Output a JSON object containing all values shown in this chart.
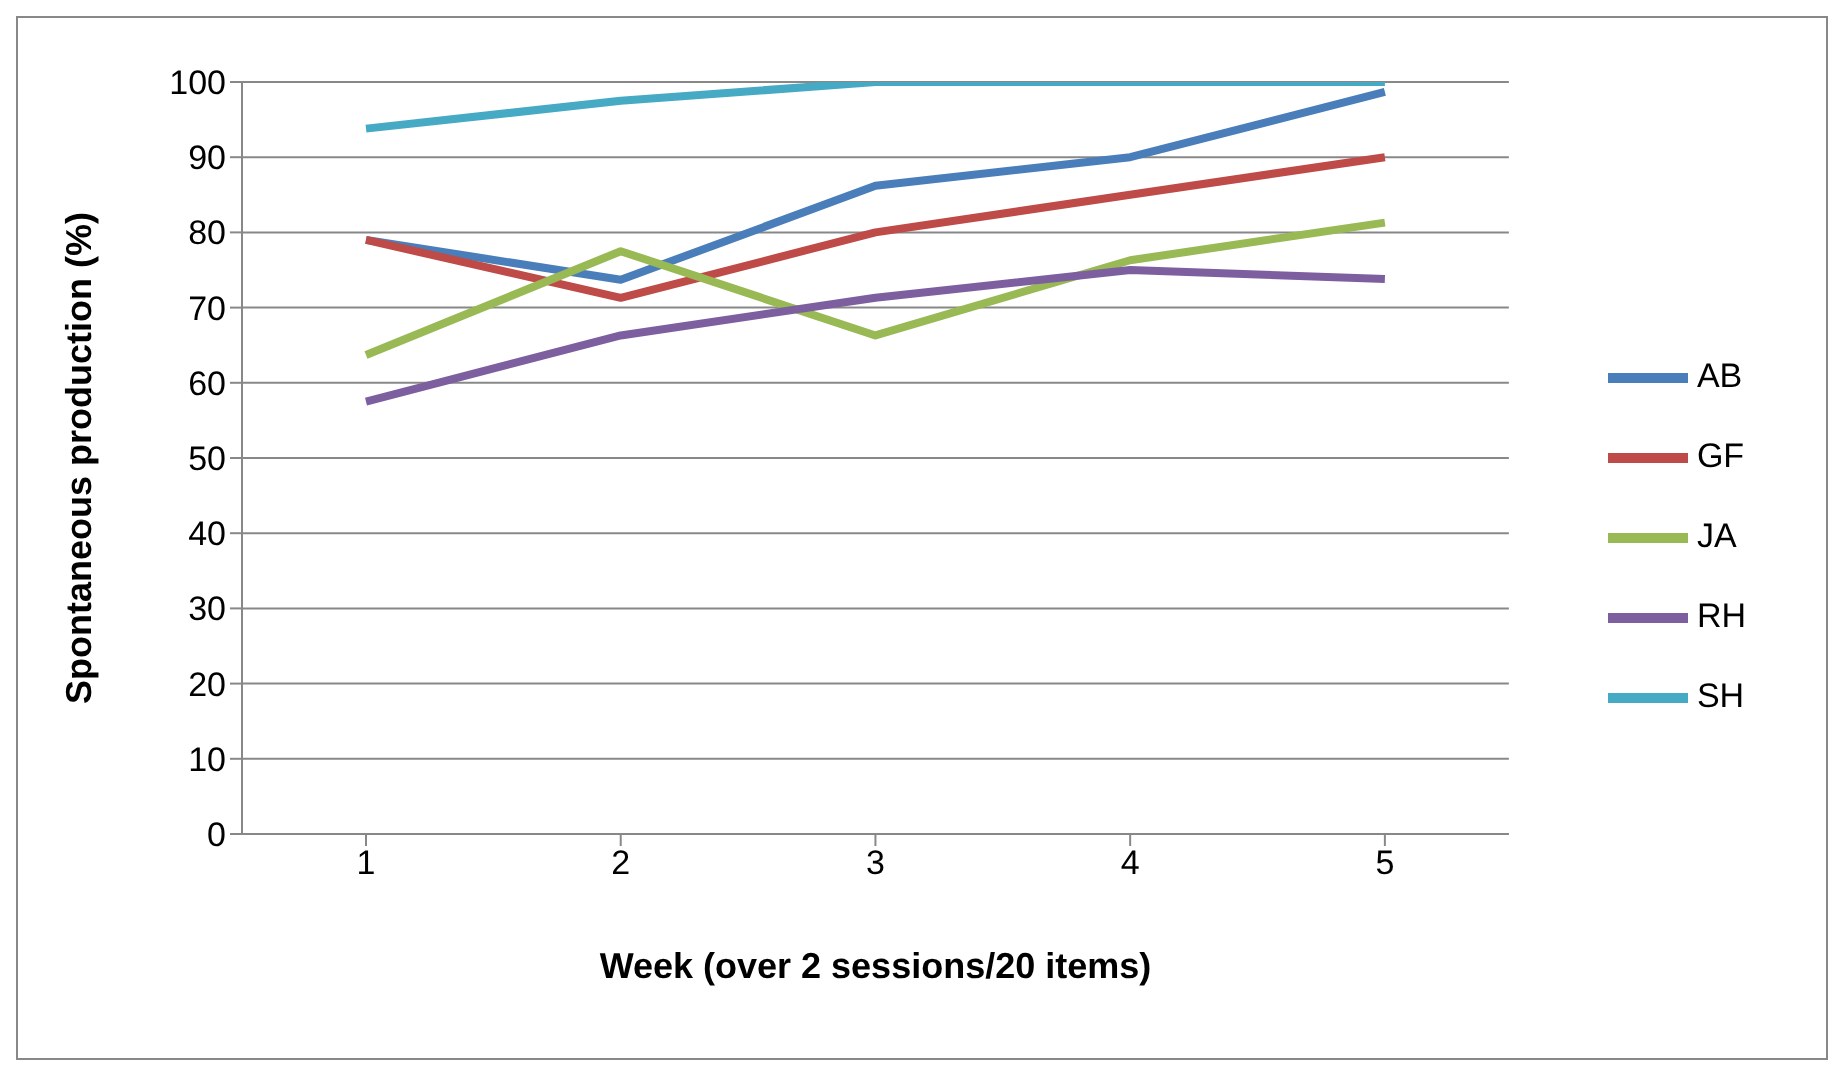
{
  "chart_data": {
    "type": "line",
    "xlabel": "Week (over 2 sessions/20 items)",
    "ylabel": "Spontaneous production (%)",
    "categories": [
      "1",
      "2",
      "3",
      "4",
      "5"
    ],
    "series": [
      {
        "name": "AB",
        "color": "#4a7ebb",
        "values": [
          79,
          73.7,
          86.2,
          90,
          98.7
        ]
      },
      {
        "name": "GF",
        "color": "#be4b48",
        "values": [
          79,
          71.3,
          80,
          85,
          90
        ]
      },
      {
        "name": "JA",
        "color": "#98b954",
        "values": [
          63.7,
          77.5,
          66.3,
          76.3,
          81.3
        ]
      },
      {
        "name": "RH",
        "color": "#7d5fa0",
        "values": [
          57.5,
          66.3,
          71.3,
          75,
          73.8
        ]
      },
      {
        "name": "SH",
        "color": "#46aac5",
        "values": [
          93.8,
          97.5,
          100,
          100,
          100
        ]
      }
    ],
    "ylim": [
      0,
      100
    ],
    "yticks": [
      0,
      10,
      20,
      30,
      40,
      50,
      60,
      70,
      80,
      90,
      100
    ],
    "grid": "y",
    "legend": "right",
    "marker": "none",
    "line_style": "solid"
  }
}
